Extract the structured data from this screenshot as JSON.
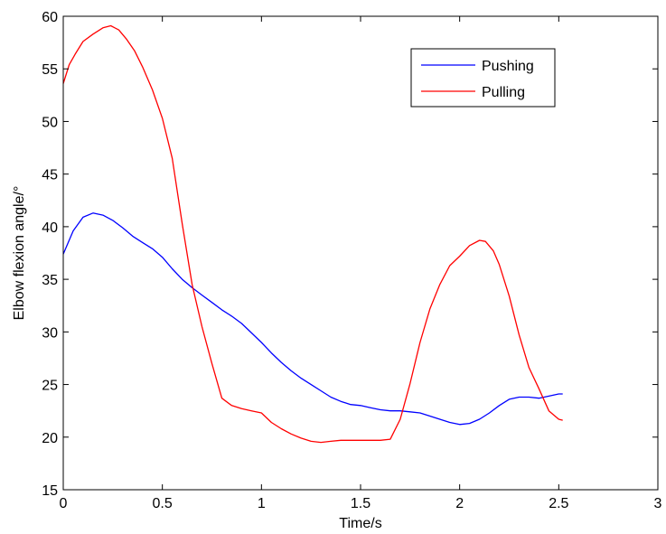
{
  "chart_data": {
    "type": "line",
    "title": "",
    "xlabel": "Time/s",
    "ylabel": "Elbow flexion angle/°",
    "xlim": [
      0,
      3
    ],
    "ylim": [
      15,
      60
    ],
    "xticks": [
      0,
      0.5,
      1,
      1.5,
      2,
      2.5,
      3
    ],
    "xtick_labels": [
      "0",
      "0.5",
      "1",
      "1.5",
      "2",
      "2.5",
      "3"
    ],
    "yticks": [
      15,
      20,
      25,
      30,
      35,
      40,
      45,
      50,
      55,
      60
    ],
    "ytick_labels": [
      "15",
      "20",
      "25",
      "30",
      "35",
      "40",
      "45",
      "50",
      "55",
      "60"
    ],
    "grid": false,
    "legend_position": "top-right",
    "series": [
      {
        "name": "Pushing",
        "color": "#0000ff",
        "x": [
          0,
          0.05,
          0.1,
          0.15,
          0.2,
          0.25,
          0.3,
          0.35,
          0.4,
          0.45,
          0.5,
          0.55,
          0.6,
          0.65,
          0.7,
          0.75,
          0.8,
          0.85,
          0.9,
          0.95,
          1.0,
          1.05,
          1.1,
          1.15,
          1.2,
          1.25,
          1.3,
          1.35,
          1.4,
          1.45,
          1.5,
          1.55,
          1.6,
          1.65,
          1.7,
          1.75,
          1.8,
          1.85,
          1.9,
          1.95,
          2.0,
          2.05,
          2.1,
          2.15,
          2.2,
          2.25,
          2.3,
          2.35,
          2.4,
          2.45,
          2.5,
          2.52
        ],
        "y": [
          37.4,
          39.6,
          40.9,
          41.3,
          41.1,
          40.6,
          39.9,
          39.1,
          38.5,
          37.9,
          37.1,
          36.0,
          35.0,
          34.2,
          33.5,
          32.8,
          32.1,
          31.5,
          30.8,
          29.9,
          29.0,
          28.0,
          27.1,
          26.3,
          25.6,
          25.0,
          24.4,
          23.8,
          23.4,
          23.1,
          23.0,
          22.8,
          22.6,
          22.5,
          22.5,
          22.4,
          22.3,
          22.0,
          21.7,
          21.4,
          21.2,
          21.3,
          21.7,
          22.3,
          23.0,
          23.6,
          23.8,
          23.8,
          23.7,
          23.9,
          24.1,
          24.1
        ]
      },
      {
        "name": "Pulling",
        "color": "#ff0000",
        "x": [
          0,
          0.03,
          0.06,
          0.1,
          0.15,
          0.2,
          0.24,
          0.28,
          0.32,
          0.36,
          0.4,
          0.45,
          0.5,
          0.55,
          0.6,
          0.65,
          0.7,
          0.75,
          0.8,
          0.85,
          0.9,
          0.95,
          1.0,
          1.05,
          1.1,
          1.15,
          1.2,
          1.25,
          1.3,
          1.35,
          1.4,
          1.45,
          1.5,
          1.55,
          1.6,
          1.65,
          1.7,
          1.75,
          1.8,
          1.85,
          1.9,
          1.95,
          2.0,
          2.05,
          2.1,
          2.13,
          2.17,
          2.2,
          2.25,
          2.3,
          2.35,
          2.4,
          2.45,
          2.5,
          2.52
        ],
        "y": [
          53.6,
          55.4,
          56.4,
          57.6,
          58.3,
          58.9,
          59.1,
          58.7,
          57.8,
          56.7,
          55.2,
          53.0,
          50.3,
          46.5,
          40.3,
          34.5,
          30.5,
          27.0,
          23.7,
          23.0,
          22.7,
          22.5,
          22.3,
          21.4,
          20.8,
          20.3,
          19.9,
          19.6,
          19.5,
          19.6,
          19.7,
          19.7,
          19.7,
          19.7,
          19.7,
          19.8,
          21.7,
          25.1,
          29.0,
          32.2,
          34.5,
          36.3,
          37.2,
          38.2,
          38.7,
          38.6,
          37.7,
          36.4,
          33.4,
          29.7,
          26.6,
          24.6,
          22.5,
          21.7,
          21.6
        ]
      }
    ]
  }
}
